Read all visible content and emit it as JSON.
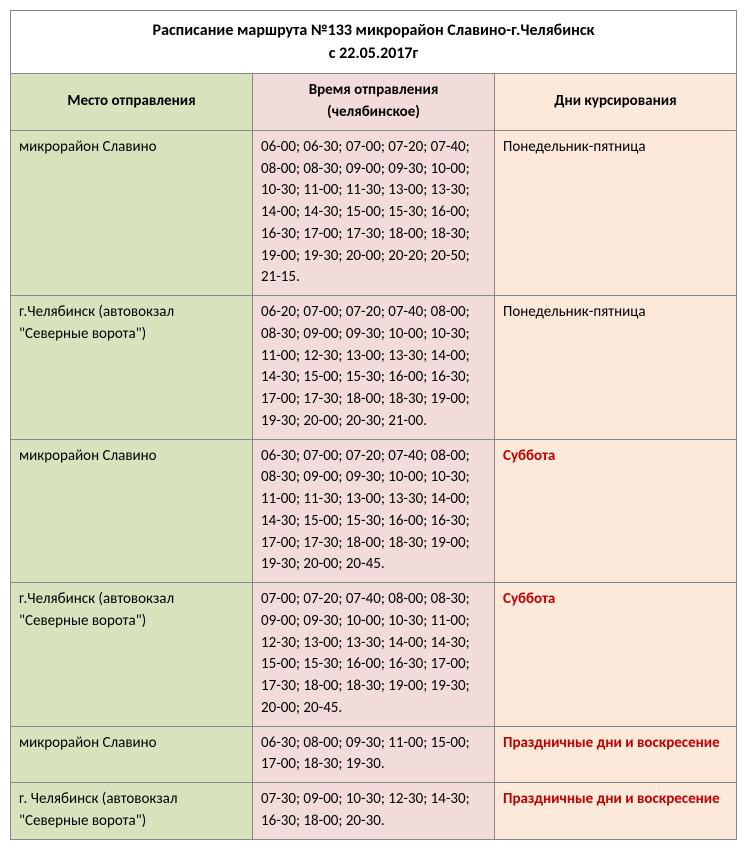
{
  "title_line1": "Расписание маршрута №133 микрорайон Славино-г.Челябинск",
  "title_line2": "с 22.05.2017г",
  "headers": {
    "place": "Место отправления",
    "time": "Время отправления (челябинское)",
    "days": "Дни курсирования"
  },
  "rows": [
    {
      "place": "микрорайон Славино",
      "time": "06-00; 06-30; 07-00; 07-20; 07-40; 08-00; 08-30; 09-00; 09-30; 10-00; 10-30; 11-00; 11-30; 13-00; 13-30; 14-00; 14-30; 15-00; 15-30; 16-00; 16-30; 17-00; 17-30; 18-00; 18-30; 19-00; 19-30; 20-00; 20-20; 20-50; 21-15.",
      "days": "Понедельник-пятница",
      "days_red": false
    },
    {
      "place": "г.Челябинск (автовокзал \"Северные ворота\")",
      "time": "06-20; 07-00; 07-20; 07-40; 08-00; 08-30; 09-00; 09-30; 10-00; 10-30; 11-00; 12-30; 13-00; 13-30; 14-00; 14-30; 15-00; 15-30; 16-00; 16-30; 17-00; 17-30; 18-00; 18-30; 19-00; 19-30; 20-00; 20-30; 21-00.",
      "days": "Понедельник-пятница",
      "days_red": false
    },
    {
      "place": "микрорайон Славино",
      "time": "06-30; 07-00; 07-20; 07-40; 08-00; 08-30; 09-00; 09-30; 10-00; 10-30; 11-00; 11-30; 13-00; 13-30; 14-00; 14-30; 15-00; 15-30; 16-00; 16-30; 17-00; 17-30; 18-00; 18-30; 19-00; 19-30; 20-00; 20-45.",
      "days": "Суббота",
      "days_red": true
    },
    {
      "place": "г.Челябинск (автовокзал \"Северные ворота\")",
      "time": "07-00; 07-20; 07-40; 08-00; 08-30; 09-00; 09-30; 10-00; 10-30; 11-00; 12-30; 13-00; 13-30; 14-00; 14-30; 15-00; 15-30; 16-00; 16-30; 17-00; 17-30; 18-00; 18-30; 19-00; 19-30; 20-00; 20-45.",
      "days": "Суббота",
      "days_red": true
    },
    {
      "place": "микрорайон Славино",
      "time": "06-30; 08-00; 09-30; 11-00; 15-00; 17-00; 18-30; 19-30.",
      "days": "Праздничные дни и воскресение",
      "days_red": true
    },
    {
      "place": "г. Челябинск (автовокзал \"Северные ворота\")",
      "time": "07-30; 09-00; 10-30; 12-30; 14-30; 16-30; 18-00;  20-30.",
      "days": "Праздничные дни и воскресение",
      "days_red": true
    }
  ]
}
